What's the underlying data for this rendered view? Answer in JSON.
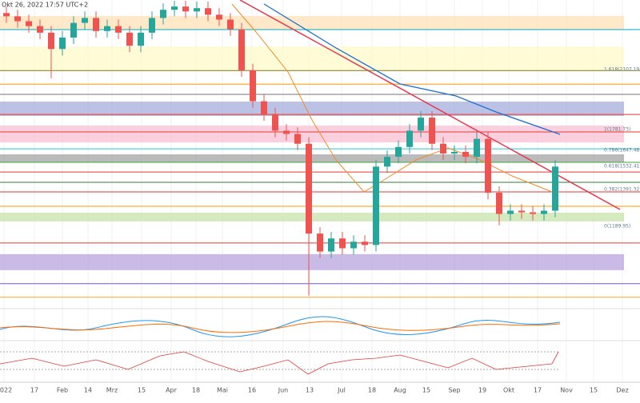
{
  "chart_data": {
    "type": "candlestick",
    "header": "Okt 26, 2022 17:57 UTC+2",
    "x_labels": [
      "2022",
      "17",
      "Feb",
      "14",
      "Mrz",
      "15",
      "Apr",
      "18",
      "Mai",
      "16",
      "Jun",
      "13",
      "Jul",
      "18",
      "Aug",
      "15",
      "Sep",
      "19",
      "Okt",
      "17",
      "Nov",
      "15",
      "Dez"
    ],
    "open": [
      2500,
      2480,
      2450,
      2420,
      2380,
      2280,
      2350,
      2440,
      2470,
      2390,
      2420,
      2380,
      2300,
      2380,
      2470,
      2520,
      2540,
      2510,
      2530,
      2490,
      2460,
      2400,
      2150,
      1960,
      1880,
      1780,
      1760,
      1700,
      1150,
      1040,
      1120,
      1060,
      1100,
      1080,
      1560,
      1620,
      1680,
      1780,
      1860,
      1700,
      1640,
      1650,
      1620,
      1730,
      1400,
      1270,
      1290,
      1280,
      1270,
      1290
    ],
    "high": [
      2540,
      2520,
      2490,
      2460,
      2420,
      2390,
      2480,
      2510,
      2510,
      2460,
      2460,
      2420,
      2420,
      2510,
      2560,
      2575,
      2575,
      2570,
      2570,
      2530,
      2500,
      2440,
      2190,
      2000,
      1920,
      1820,
      1800,
      1740,
      1190,
      1160,
      1160,
      1140,
      1140,
      1600,
      1660,
      1720,
      1820,
      1900,
      1900,
      1740,
      1690,
      1690,
      1770,
      1770,
      1440,
      1330,
      1330,
      1320,
      1330,
      1600
    ],
    "low": [
      2440,
      2410,
      2380,
      2340,
      2100,
      2240,
      2310,
      2400,
      2350,
      2350,
      2340,
      2260,
      2260,
      2340,
      2430,
      2480,
      2470,
      2470,
      2450,
      2420,
      2360,
      2110,
      1920,
      1840,
      1740,
      1720,
      1660,
      770,
      1000,
      1000,
      1020,
      1020,
      1040,
      1040,
      1520,
      1580,
      1640,
      1740,
      1660,
      1600,
      1600,
      1580,
      1580,
      1360,
      1200,
      1230,
      1240,
      1230,
      1230,
      1250
    ],
    "close": [
      2480,
      2450,
      2420,
      2380,
      2280,
      2350,
      2440,
      2470,
      2390,
      2420,
      2380,
      2300,
      2380,
      2470,
      2520,
      2540,
      2510,
      2530,
      2490,
      2460,
      2400,
      2150,
      1960,
      1880,
      1780,
      1760,
      1700,
      1150,
      1040,
      1120,
      1060,
      1100,
      1080,
      1560,
      1620,
      1680,
      1780,
      1860,
      1700,
      1640,
      1650,
      1620,
      1730,
      1400,
      1270,
      1290,
      1280,
      1270,
      1290,
      1560
    ],
    "up_color": "#26a69a",
    "down_color": "#ef5350",
    "ylim": [
      700,
      2580
    ],
    "zones": [
      {
        "from": 2399,
        "to": 2482,
        "color": "#ffe0b2"
      },
      {
        "from": 2148,
        "to": 2295,
        "color": "#fff9c4"
      },
      {
        "from": 1870,
        "to": 1958,
        "color": "#9fa8da"
      },
      {
        "from": 1708,
        "to": 1811,
        "color": "#f8bbd0"
      },
      {
        "from": 1586,
        "to": 1635,
        "color": "#9e9e9e"
      },
      {
        "from": 1224,
        "to": 1278,
        "color": "#c5e1a5"
      },
      {
        "from": 926,
        "to": 1024,
        "color": "#b39ddb"
      }
    ],
    "levels": [
      {
        "value": 2399,
        "color": "#00acc1"
      },
      {
        "value": 2148,
        "color": "#827717"
      },
      {
        "value": 2065,
        "color": "#ff9800"
      },
      {
        "value": 2002,
        "color": "#757575"
      },
      {
        "value": 1879,
        "color": "#e53935"
      },
      {
        "value": 1772,
        "color": "#e53935"
      },
      {
        "value": 1669,
        "color": "#26c6da"
      },
      {
        "value": 1586,
        "color": "#43a047"
      },
      {
        "value": 1527,
        "color": "#e53935"
      },
      {
        "value": 1464,
        "color": "#2e7d32"
      },
      {
        "value": 1405,
        "color": "#e53935"
      },
      {
        "value": 1317,
        "color": "#ff9800"
      },
      {
        "value": 1092,
        "color": "#e53935"
      },
      {
        "value": 843,
        "color": "#7e57c2"
      },
      {
        "value": 760,
        "color": "#f9a825"
      }
    ],
    "fib_labels": [
      "1.618(2107.19)",
      "1(1781.73)",
      "0.786(1647.48)",
      "0.618(1532.41)",
      "0.382(1391.32)",
      "0(1189.95)"
    ]
  }
}
